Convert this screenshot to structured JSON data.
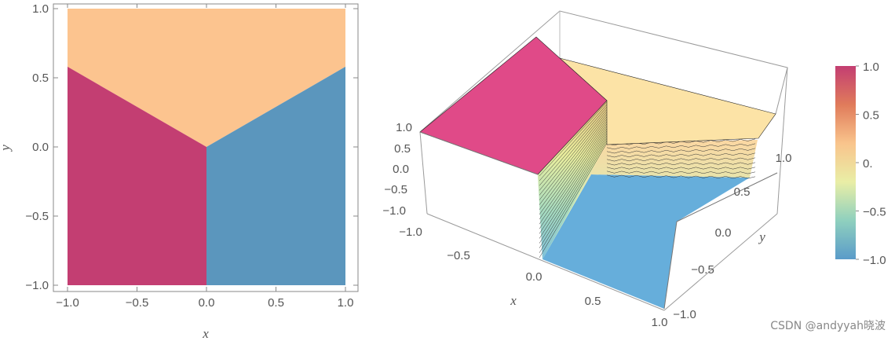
{
  "chart_data": [
    {
      "type": "heatmap",
      "title": "",
      "xlabel": "x",
      "ylabel": "y",
      "xlim": [
        -1.0,
        1.0
      ],
      "ylim": [
        -1.0,
        1.0
      ],
      "xticks": [
        "−1.0",
        "−0.5",
        "0.0",
        "0.5",
        "1.0"
      ],
      "yticks": [
        "−1.0",
        "−0.5",
        "0.0",
        "0.5",
        "1.0"
      ],
      "regions": [
        {
          "region": "upper wedge",
          "value": 0.0,
          "color": "#FCC48F"
        },
        {
          "region": "lower-left (x<0)",
          "value": 1.0,
          "color": "#C33E72"
        },
        {
          "region": "lower-right (x>0)",
          "value": -1.0,
          "color": "#5B96BD"
        }
      ],
      "boundary_slope": 0.58
    },
    {
      "type": "surface3d",
      "xlabel": "x",
      "ylabel": "y",
      "xticks": [
        "−1.0",
        "−0.5",
        "0.0",
        "0.5",
        "1.0"
      ],
      "yticks": [
        "−1.0",
        "−0.5",
        "0.0",
        "0.5",
        "1.0"
      ],
      "zticks": [
        "−1.0",
        "−0.5",
        "0.0",
        "0.5",
        "1.0"
      ],
      "zlim": [
        -1.0,
        1.0
      ],
      "levels": [
        {
          "region": "x<0, below wedge",
          "z": 1.0,
          "color": "#E04A88"
        },
        {
          "region": "upper wedge",
          "z": 0.0,
          "color": "#FCE3A6"
        },
        {
          "region": "x>0, below wedge",
          "z": -1.0,
          "color": "#66AEDB"
        }
      ]
    }
  ],
  "legend": {
    "type": "colorbar",
    "ticks": [
      "1.0",
      "0.5",
      "0.",
      "−0.5",
      "−1.0"
    ],
    "values": [
      1.0,
      0.5,
      0.0,
      -0.5,
      -1.0
    ],
    "colors": [
      "#5A9BC9",
      "#8FD0BE",
      "#E9EEA6",
      "#F9C48C",
      "#E07B5B",
      "#C33E72"
    ]
  },
  "watermark": "CSDN @andyyah晓波"
}
